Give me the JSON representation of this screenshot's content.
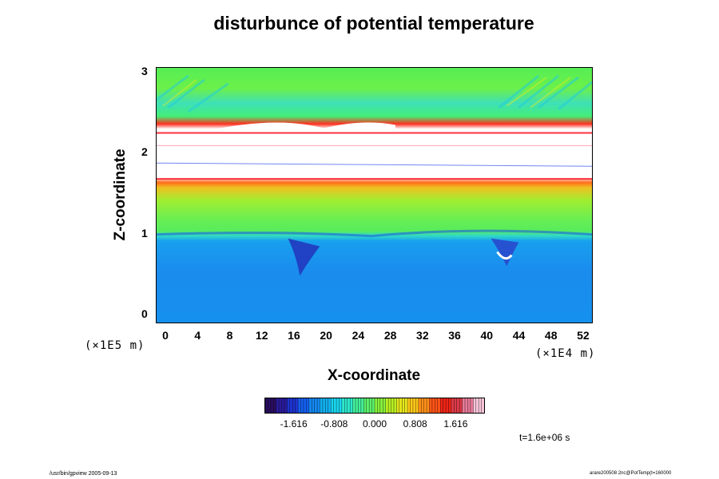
{
  "chart_data": {
    "type": "heatmap",
    "title": "disturbunce of potential temperature",
    "xlabel": "X-coordinate",
    "ylabel": "Z-coordinate",
    "x_unit": "(×1E4 m)",
    "y_unit": "(×1E5 m)",
    "xlim": [
      -1.2,
      53.2
    ],
    "ylim": [
      -0.12,
      3.05
    ],
    "x_ticks": [
      "0",
      "4",
      "8",
      "12",
      "16",
      "20",
      "24",
      "28",
      "32",
      "36",
      "40",
      "44",
      "48",
      "52"
    ],
    "y_ticks": [
      "0",
      "1",
      "2",
      "3"
    ],
    "colorbar": {
      "ticks": [
        "-1.616",
        "-0.808",
        "0.000",
        "0.808",
        "1.616"
      ],
      "colors": [
        "#2a0e60",
        "#2a1a9a",
        "#1e34d0",
        "#1560f0",
        "#1488f0",
        "#13b0f0",
        "#19d6ee",
        "#2ee8cc",
        "#44ee9a",
        "#5cf06a",
        "#88f03c",
        "#b8ee22",
        "#e6e61c",
        "#ffc818",
        "#ff9018",
        "#ff5418",
        "#ee2416",
        "#dc3a48",
        "#e67a98",
        "#f6c4d8"
      ],
      "range": [
        -2.2,
        2.2
      ]
    },
    "field_description": "Stable layer above ~2.4 shows mainly positive (green to yellow) disturbance with wave trains near the top; band between ~1.55 and ~2.3 saturates (white) with red/orange fringes; mid layer 1.0–1.55 mostly green; lower layer below ~0.95 negative (blue), with dark blue plumes near x≈16 and x≈42."
  },
  "time_label": "t=1.6e+06 s",
  "footer": {
    "left": "/usr/bin/gpview 2005-09-13",
    "right": "arare200508 2nc@PotTemp(t=160000"
  }
}
